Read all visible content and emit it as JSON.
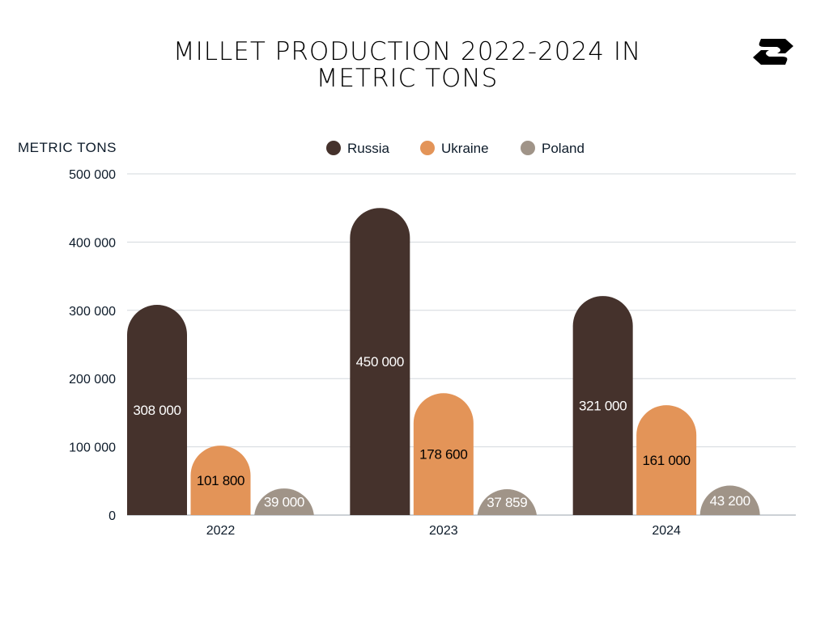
{
  "title_lines": [
    "MILLET PRODUCTION 2022-2024 IN",
    "METRIC TONS"
  ],
  "chart_data": {
    "type": "bar",
    "title": "MILLET PRODUCTION 2022-2024 IN METRIC TONS",
    "xlabel": "",
    "ylabel": "METRIC TONS",
    "categories": [
      "2022",
      "2023",
      "2024"
    ],
    "series": [
      {
        "name": "Russia",
        "color": "#45322c",
        "label_color": "#ffffff",
        "values": [
          308000,
          450000,
          321000
        ],
        "labels": [
          "308 000",
          "450 000",
          "321 000"
        ]
      },
      {
        "name": "Ukraine",
        "color": "#e39458",
        "label_color": "#000000",
        "values": [
          101800,
          178600,
          161000
        ],
        "labels": [
          "101 800",
          "178 600",
          "161 000"
        ]
      },
      {
        "name": "Poland",
        "color": "#a09488",
        "label_color": "#ffffff",
        "values": [
          39000,
          37859,
          43200
        ],
        "labels": [
          "39 000",
          "37 859",
          "43 200"
        ]
      }
    ],
    "ylim": [
      0,
      500000
    ],
    "yticks": [
      0,
      100000,
      200000,
      300000,
      400000,
      500000
    ],
    "ytick_labels": [
      "0",
      "100 000",
      "200 000",
      "300 000",
      "400 000",
      "500 000"
    ],
    "grid": true,
    "legend_position": "top-center"
  }
}
